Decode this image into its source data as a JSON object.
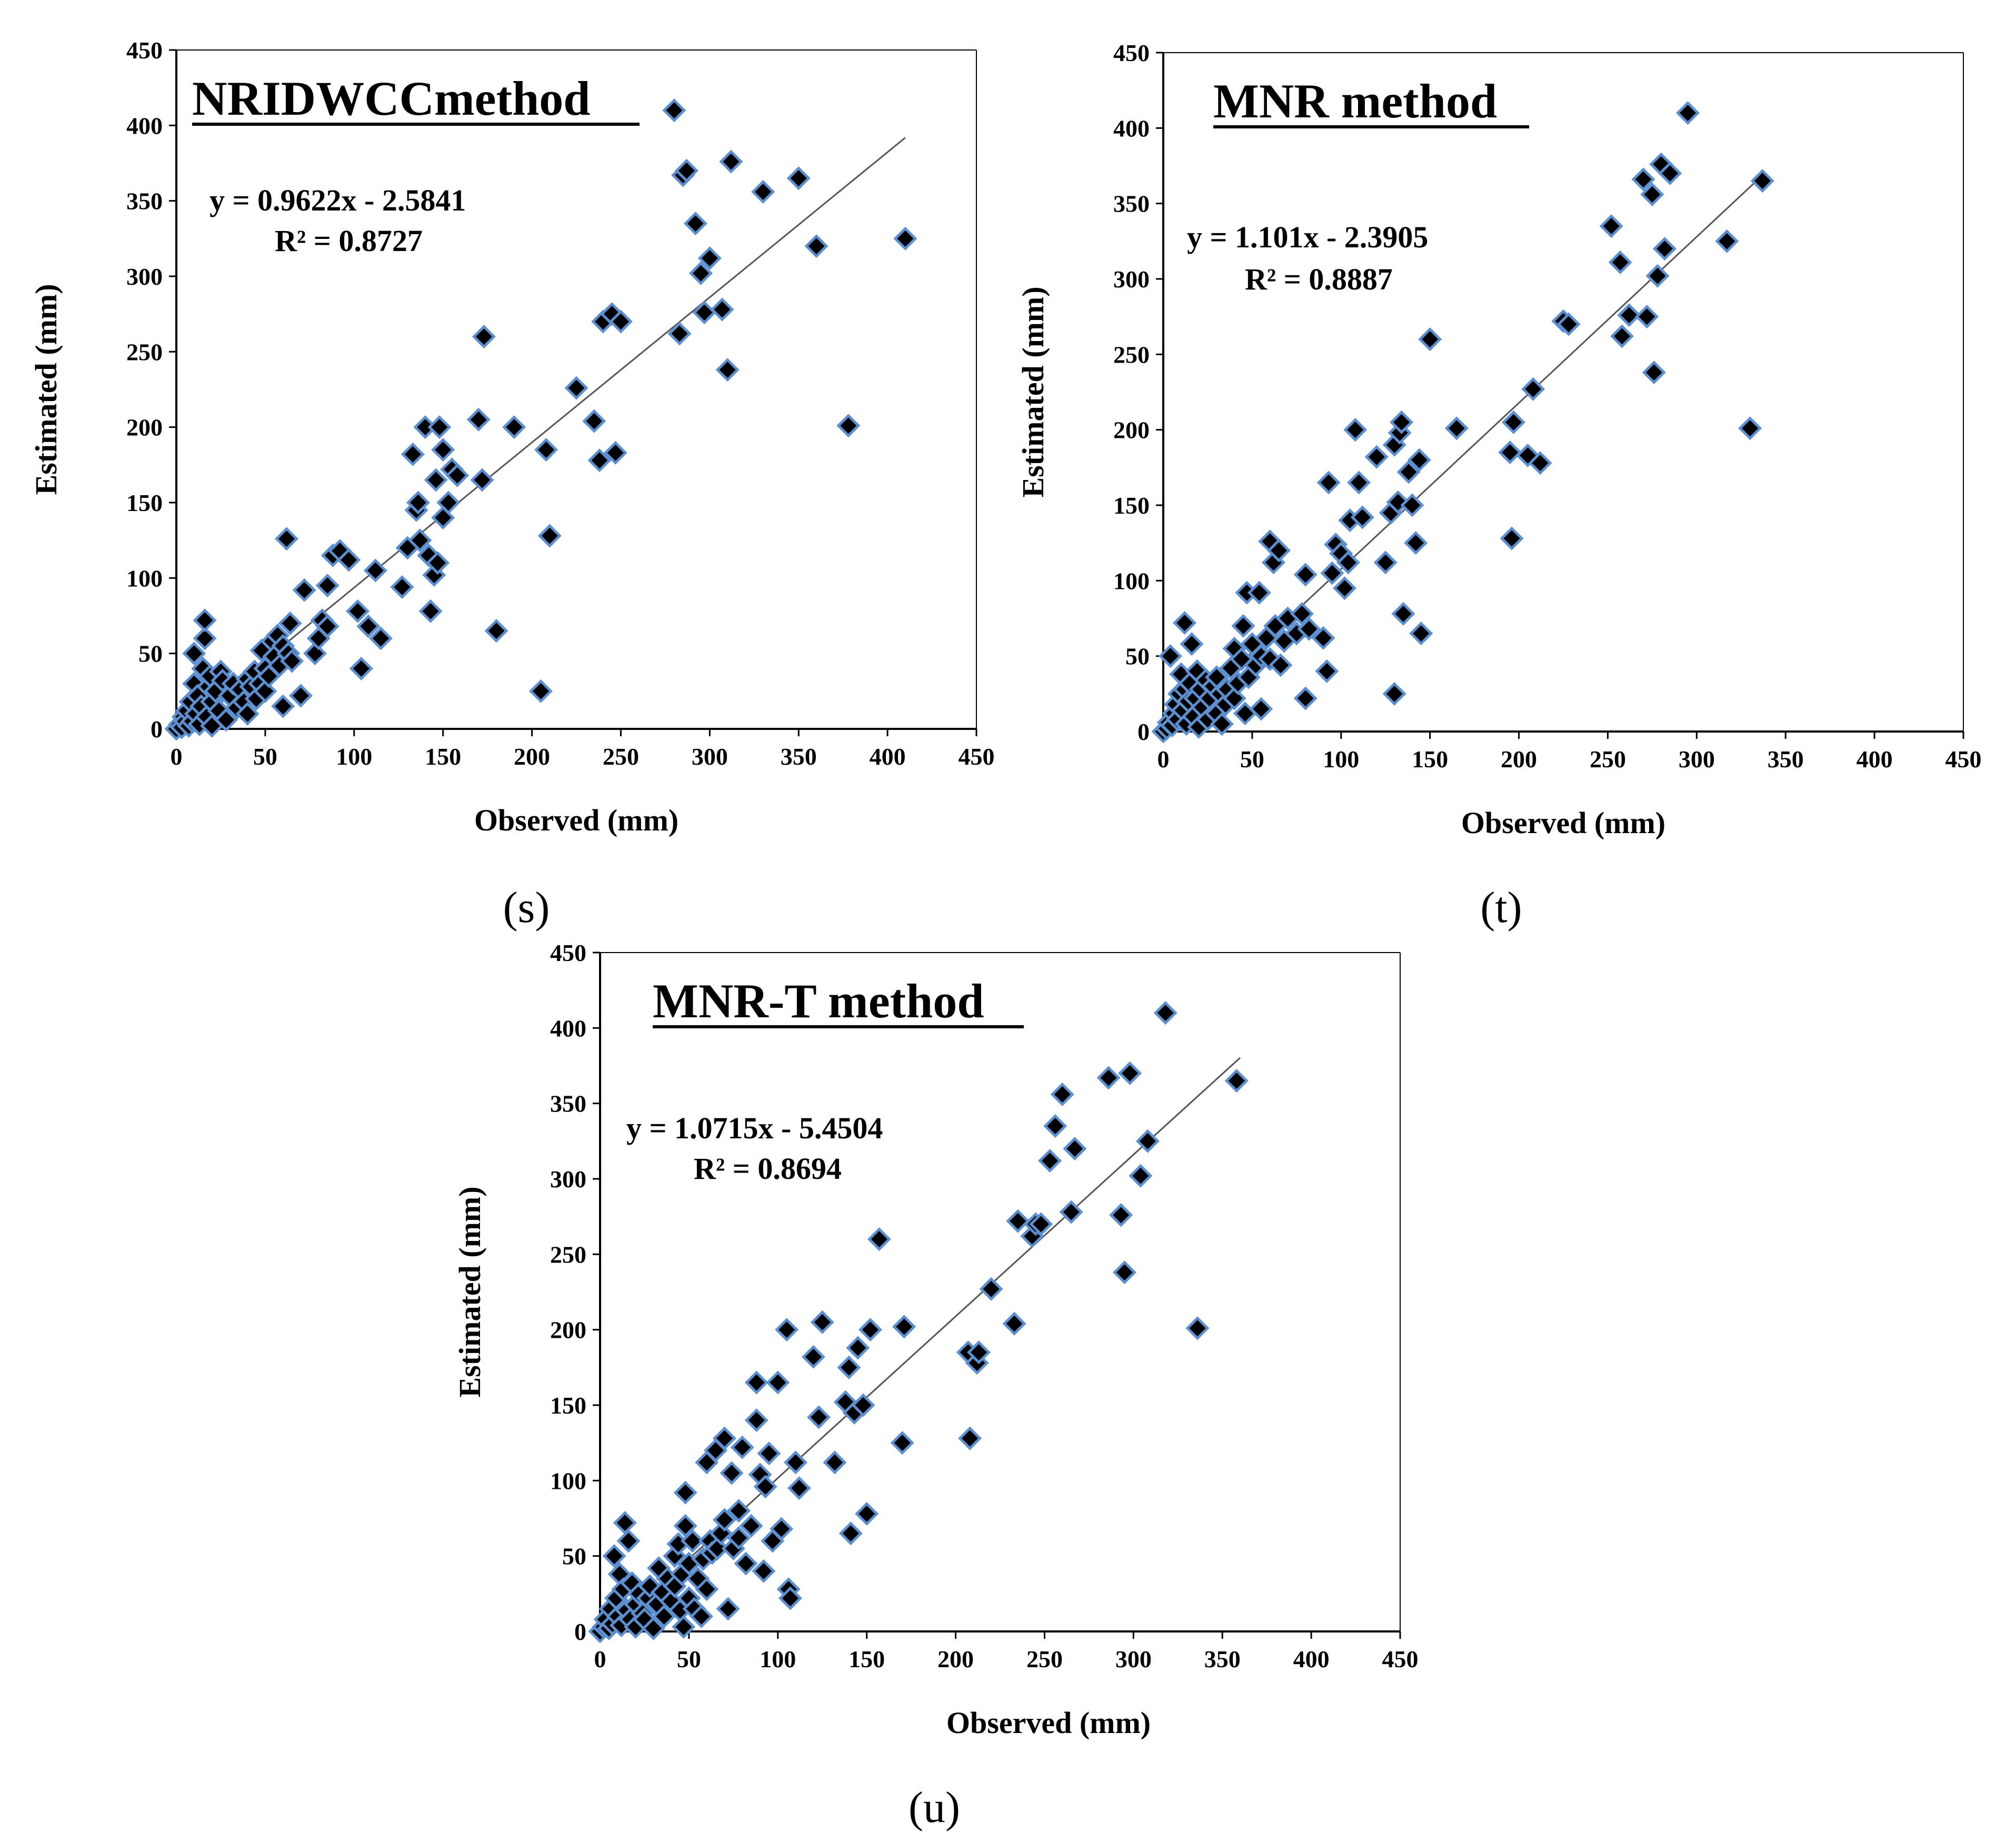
{
  "colors": {
    "marker_fill": "#000000",
    "marker_stroke": "#5b8fd0",
    "trendline": "#555555",
    "axis": "#000000"
  },
  "chart_data": [
    {
      "id": "s",
      "type": "scatter",
      "subcaption": "(s)",
      "title": "NRIDWCCmethod",
      "equation": "y = 0.9622x - 2.5841",
      "r2": "R² = 0.8727",
      "slope": 0.9622,
      "intercept": -2.5841,
      "trend_x": [
        0,
        410
      ],
      "xlabel": "Observed (mm)",
      "ylabel": "Estimated (mm)",
      "xlim": [
        0,
        450
      ],
      "ylim": [
        0,
        450
      ],
      "xticks": [
        "0",
        "50",
        "100",
        "150",
        "200",
        "250",
        "300",
        "350",
        "400",
        "450"
      ],
      "yticks": [
        "0",
        "50",
        "100",
        "150",
        "200",
        "250",
        "300",
        "350",
        "400",
        "450"
      ],
      "points": [
        [
          0,
          0
        ],
        [
          2,
          3
        ],
        [
          3,
          1
        ],
        [
          4,
          8
        ],
        [
          5,
          5
        ],
        [
          6,
          12
        ],
        [
          7,
          2
        ],
        [
          8,
          18
        ],
        [
          9,
          5
        ],
        [
          10,
          30
        ],
        [
          10,
          50
        ],
        [
          11,
          10
        ],
        [
          12,
          22
        ],
        [
          13,
          3
        ],
        [
          14,
          15
        ],
        [
          15,
          40
        ],
        [
          16,
          60
        ],
        [
          16,
          72
        ],
        [
          17,
          8
        ],
        [
          18,
          28
        ],
        [
          19,
          35
        ],
        [
          20,
          2
        ],
        [
          20,
          18
        ],
        [
          22,
          25
        ],
        [
          24,
          12
        ],
        [
          25,
          38
        ],
        [
          26,
          32
        ],
        [
          28,
          6
        ],
        [
          30,
          22
        ],
        [
          32,
          30
        ],
        [
          34,
          14
        ],
        [
          36,
          26
        ],
        [
          38,
          18
        ],
        [
          40,
          10
        ],
        [
          40,
          33
        ],
        [
          42,
          28
        ],
        [
          44,
          38
        ],
        [
          45,
          20
        ],
        [
          47,
          30
        ],
        [
          48,
          52
        ],
        [
          50,
          25
        ],
        [
          50,
          40
        ],
        [
          52,
          35
        ],
        [
          54,
          58
        ],
        [
          55,
          48
        ],
        [
          57,
          62
        ],
        [
          58,
          42
        ],
        [
          60,
          15
        ],
        [
          60,
          55
        ],
        [
          62,
          126
        ],
        [
          63,
          50
        ],
        [
          64,
          70
        ],
        [
          65,
          45
        ],
        [
          70,
          22
        ],
        [
          72,
          92
        ],
        [
          78,
          50
        ],
        [
          80,
          60
        ],
        [
          82,
          72
        ],
        [
          85,
          68
        ],
        [
          85,
          95
        ],
        [
          88,
          115
        ],
        [
          92,
          118
        ],
        [
          97,
          112
        ],
        [
          102,
          78
        ],
        [
          104,
          40
        ],
        [
          108,
          68
        ],
        [
          112,
          105
        ],
        [
          115,
          60
        ],
        [
          127,
          94
        ],
        [
          130,
          120
        ],
        [
          133,
          182
        ],
        [
          135,
          145
        ],
        [
          136,
          150
        ],
        [
          137,
          125
        ],
        [
          140,
          200
        ],
        [
          142,
          115
        ],
        [
          143,
          78
        ],
        [
          145,
          102
        ],
        [
          146,
          165
        ],
        [
          147,
          110
        ],
        [
          148,
          200
        ],
        [
          150,
          185
        ],
        [
          150,
          140
        ],
        [
          153,
          150
        ],
        [
          155,
          172
        ],
        [
          158,
          168
        ],
        [
          170,
          205
        ],
        [
          172,
          165
        ],
        [
          173,
          260
        ],
        [
          180,
          65
        ],
        [
          190,
          200
        ],
        [
          205,
          25
        ],
        [
          208,
          185
        ],
        [
          210,
          128
        ],
        [
          225,
          226
        ],
        [
          235,
          204
        ],
        [
          238,
          178
        ],
        [
          240,
          270
        ],
        [
          245,
          275
        ],
        [
          247,
          183
        ],
        [
          250,
          270
        ],
        [
          280,
          410
        ],
        [
          283,
          262
        ],
        [
          285,
          367
        ],
        [
          287,
          370
        ],
        [
          292,
          335
        ],
        [
          295,
          302
        ],
        [
          297,
          276
        ],
        [
          300,
          312
        ],
        [
          307,
          278
        ],
        [
          310,
          238
        ],
        [
          312,
          376
        ],
        [
          330,
          356
        ],
        [
          350,
          365
        ],
        [
          360,
          320
        ],
        [
          378,
          201
        ],
        [
          410,
          325
        ]
      ]
    },
    {
      "id": "t",
      "type": "scatter",
      "subcaption": "(t)",
      "title": "MNR method",
      "equation": "y = 1.101x - 2.3905",
      "r2": "R² = 0.8887",
      "slope": 1.101,
      "intercept": -2.3905,
      "trend_x": [
        0,
        335
      ],
      "xlabel": "Observed (mm)",
      "ylabel": "Estimated (mm)",
      "xlim": [
        0,
        450
      ],
      "ylim": [
        0,
        450
      ],
      "xticks": [
        "0",
        "50",
        "100",
        "150",
        "200",
        "250",
        "300",
        "350",
        "400",
        "450"
      ],
      "yticks": [
        "0",
        "50",
        "100",
        "150",
        "200",
        "250",
        "300",
        "350",
        "400",
        "450"
      ],
      "points": [
        [
          0,
          0
        ],
        [
          2,
          2
        ],
        [
          3,
          6
        ],
        [
          4,
          50
        ],
        [
          5,
          4
        ],
        [
          6,
          12
        ],
        [
          7,
          18
        ],
        [
          8,
          8
        ],
        [
          9,
          25
        ],
        [
          10,
          38
        ],
        [
          11,
          14
        ],
        [
          12,
          28
        ],
        [
          12,
          72
        ],
        [
          13,
          5
        ],
        [
          14,
          20
        ],
        [
          15,
          32
        ],
        [
          16,
          58
        ],
        [
          17,
          10
        ],
        [
          18,
          22
        ],
        [
          19,
          40
        ],
        [
          20,
          3
        ],
        [
          21,
          28
        ],
        [
          22,
          16
        ],
        [
          24,
          34
        ],
        [
          25,
          8
        ],
        [
          26,
          22
        ],
        [
          28,
          30
        ],
        [
          30,
          12
        ],
        [
          30,
          36
        ],
        [
          32,
          25
        ],
        [
          33,
          5
        ],
        [
          35,
          18
        ],
        [
          36,
          28
        ],
        [
          38,
          42
        ],
        [
          40,
          22
        ],
        [
          40,
          55
        ],
        [
          42,
          32
        ],
        [
          44,
          48
        ],
        [
          45,
          70
        ],
        [
          46,
          12
        ],
        [
          47,
          92
        ],
        [
          48,
          36
        ],
        [
          50,
          58
        ],
        [
          52,
          44
        ],
        [
          54,
          92
        ],
        [
          55,
          15
        ],
        [
          55,
          50
        ],
        [
          58,
          62
        ],
        [
          60,
          126
        ],
        [
          60,
          48
        ],
        [
          62,
          112
        ],
        [
          63,
          70
        ],
        [
          65,
          120
        ],
        [
          66,
          44
        ],
        [
          68,
          60
        ],
        [
          70,
          75
        ],
        [
          75,
          65
        ],
        [
          78,
          78
        ],
        [
          80,
          22
        ],
        [
          80,
          104
        ],
        [
          82,
          68
        ],
        [
          90,
          62
        ],
        [
          92,
          40
        ],
        [
          93,
          165
        ],
        [
          95,
          105
        ],
        [
          97,
          124
        ],
        [
          100,
          118
        ],
        [
          102,
          95
        ],
        [
          104,
          112
        ],
        [
          105,
          140
        ],
        [
          108,
          200
        ],
        [
          110,
          165
        ],
        [
          112,
          142
        ],
        [
          120,
          182
        ],
        [
          125,
          112
        ],
        [
          128,
          145
        ],
        [
          130,
          25
        ],
        [
          130,
          190
        ],
        [
          132,
          152
        ],
        [
          133,
          198
        ],
        [
          134,
          205
        ],
        [
          135,
          78
        ],
        [
          138,
          172
        ],
        [
          140,
          150
        ],
        [
          142,
          125
        ],
        [
          144,
          180
        ],
        [
          145,
          65
        ],
        [
          150,
          260
        ],
        [
          165,
          201
        ],
        [
          195,
          185
        ],
        [
          196,
          128
        ],
        [
          197,
          205
        ],
        [
          205,
          183
        ],
        [
          208,
          227
        ],
        [
          212,
          178
        ],
        [
          225,
          272
        ],
        [
          228,
          270
        ],
        [
          252,
          335
        ],
        [
          257,
          311
        ],
        [
          258,
          262
        ],
        [
          262,
          276
        ],
        [
          270,
          366
        ],
        [
          272,
          275
        ],
        [
          275,
          356
        ],
        [
          276,
          238
        ],
        [
          278,
          302
        ],
        [
          280,
          376
        ],
        [
          282,
          320
        ],
        [
          285,
          370
        ],
        [
          295,
          410
        ],
        [
          317,
          325
        ],
        [
          330,
          201
        ],
        [
          337,
          365
        ]
      ]
    },
    {
      "id": "u",
      "type": "scatter",
      "subcaption": "(u)",
      "title": "MNR-T method",
      "equation": "y = 1.0715x - 5.4504",
      "r2": "R² = 0.8694",
      "slope": 1.0715,
      "intercept": -5.4504,
      "trend_x": [
        0,
        360
      ],
      "xlabel": "Observed (mm)",
      "ylabel": "Estimated (mm)",
      "xlim": [
        0,
        450
      ],
      "ylim": [
        0,
        450
      ],
      "xticks": [
        "0",
        "50",
        "100",
        "150",
        "200",
        "250",
        "300",
        "350",
        "400",
        "450"
      ],
      "yticks": [
        "0",
        "50",
        "100",
        "150",
        "200",
        "250",
        "300",
        "350",
        "400",
        "450"
      ],
      "points": [
        [
          0,
          0
        ],
        [
          2,
          3
        ],
        [
          3,
          8
        ],
        [
          5,
          2
        ],
        [
          6,
          15
        ],
        [
          7,
          5
        ],
        [
          8,
          50
        ],
        [
          9,
          22
        ],
        [
          10,
          10
        ],
        [
          11,
          38
        ],
        [
          12,
          4
        ],
        [
          13,
          28
        ],
        [
          14,
          72
        ],
        [
          15,
          14
        ],
        [
          16,
          60
        ],
        [
          17,
          8
        ],
        [
          18,
          32
        ],
        [
          20,
          3
        ],
        [
          20,
          18
        ],
        [
          22,
          25
        ],
        [
          24,
          12
        ],
        [
          25,
          8
        ],
        [
          27,
          22
        ],
        [
          28,
          30
        ],
        [
          30,
          2
        ],
        [
          32,
          18
        ],
        [
          33,
          42
        ],
        [
          35,
          26
        ],
        [
          36,
          10
        ],
        [
          38,
          35
        ],
        [
          40,
          20
        ],
        [
          42,
          30
        ],
        [
          42,
          50
        ],
        [
          44,
          58
        ],
        [
          45,
          14
        ],
        [
          46,
          38
        ],
        [
          47,
          3
        ],
        [
          48,
          92
        ],
        [
          48,
          70
        ],
        [
          50,
          22
        ],
        [
          50,
          45
        ],
        [
          52,
          60
        ],
        [
          53,
          15
        ],
        [
          55,
          35
        ],
        [
          57,
          10
        ],
        [
          58,
          48
        ],
        [
          60,
          28
        ],
        [
          60,
          112
        ],
        [
          62,
          60
        ],
        [
          63,
          52
        ],
        [
          65,
          120
        ],
        [
          66,
          55
        ],
        [
          68,
          65
        ],
        [
          70,
          74
        ],
        [
          70,
          128
        ],
        [
          72,
          15
        ],
        [
          74,
          105
        ],
        [
          75,
          55
        ],
        [
          78,
          62
        ],
        [
          78,
          80
        ],
        [
          80,
          122
        ],
        [
          82,
          45
        ],
        [
          85,
          70
        ],
        [
          88,
          165
        ],
        [
          88,
          140
        ],
        [
          90,
          104
        ],
        [
          92,
          40
        ],
        [
          93,
          96
        ],
        [
          95,
          118
        ],
        [
          97,
          60
        ],
        [
          100,
          165
        ],
        [
          102,
          68
        ],
        [
          105,
          200
        ],
        [
          106,
          28
        ],
        [
          107,
          22
        ],
        [
          110,
          112
        ],
        [
          112,
          95
        ],
        [
          120,
          182
        ],
        [
          123,
          142
        ],
        [
          125,
          205
        ],
        [
          132,
          112
        ],
        [
          138,
          152
        ],
        [
          140,
          175
        ],
        [
          141,
          65
        ],
        [
          143,
          145
        ],
        [
          145,
          188
        ],
        [
          148,
          150
        ],
        [
          150,
          78
        ],
        [
          152,
          200
        ],
        [
          157,
          260
        ],
        [
          170,
          125
        ],
        [
          171,
          202
        ],
        [
          207,
          185
        ],
        [
          208,
          128
        ],
        [
          212,
          178
        ],
        [
          213,
          185
        ],
        [
          220,
          227
        ],
        [
          233,
          204
        ],
        [
          235,
          272
        ],
        [
          243,
          262
        ],
        [
          245,
          270
        ],
        [
          248,
          270
        ],
        [
          253,
          312
        ],
        [
          256,
          335
        ],
        [
          260,
          356
        ],
        [
          265,
          278
        ],
        [
          267,
          320
        ],
        [
          286,
          367
        ],
        [
          293,
          276
        ],
        [
          295,
          238
        ],
        [
          298,
          370
        ],
        [
          304,
          302
        ],
        [
          308,
          325
        ],
        [
          318,
          410
        ],
        [
          336,
          201
        ],
        [
          358,
          365
        ]
      ]
    }
  ]
}
